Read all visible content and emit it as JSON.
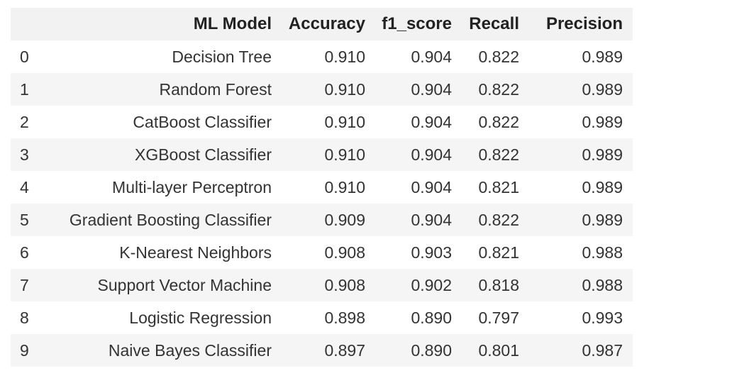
{
  "table": {
    "columns": [
      "",
      "ML Model",
      "Accuracy",
      "f1_score",
      "Recall",
      "Precision"
    ],
    "rows": [
      {
        "index": "0",
        "model": "Decision Tree",
        "accuracy": "0.910",
        "f1_score": "0.904",
        "recall": "0.822",
        "precision": "0.989"
      },
      {
        "index": "1",
        "model": "Random Forest",
        "accuracy": "0.910",
        "f1_score": "0.904",
        "recall": "0.822",
        "precision": "0.989"
      },
      {
        "index": "2",
        "model": "CatBoost Classifier",
        "accuracy": "0.910",
        "f1_score": "0.904",
        "recall": "0.822",
        "precision": "0.989"
      },
      {
        "index": "3",
        "model": "XGBoost Classifier",
        "accuracy": "0.910",
        "f1_score": "0.904",
        "recall": "0.822",
        "precision": "0.989"
      },
      {
        "index": "4",
        "model": "Multi-layer Perceptron",
        "accuracy": "0.910",
        "f1_score": "0.904",
        "recall": "0.821",
        "precision": "0.989"
      },
      {
        "index": "5",
        "model": "Gradient Boosting Classifier",
        "accuracy": "0.909",
        "f1_score": "0.904",
        "recall": "0.822",
        "precision": "0.989"
      },
      {
        "index": "6",
        "model": "K-Nearest Neighbors",
        "accuracy": "0.908",
        "f1_score": "0.903",
        "recall": "0.821",
        "precision": "0.988"
      },
      {
        "index": "7",
        "model": "Support Vector Machine",
        "accuracy": "0.908",
        "f1_score": "0.902",
        "recall": "0.818",
        "precision": "0.988"
      },
      {
        "index": "8",
        "model": "Logistic Regression",
        "accuracy": "0.898",
        "f1_score": "0.890",
        "recall": "0.797",
        "precision": "0.993"
      },
      {
        "index": "9",
        "model": "Naive Bayes Classifier",
        "accuracy": "0.897",
        "f1_score": "0.890",
        "recall": "0.801",
        "precision": "0.987"
      }
    ]
  }
}
